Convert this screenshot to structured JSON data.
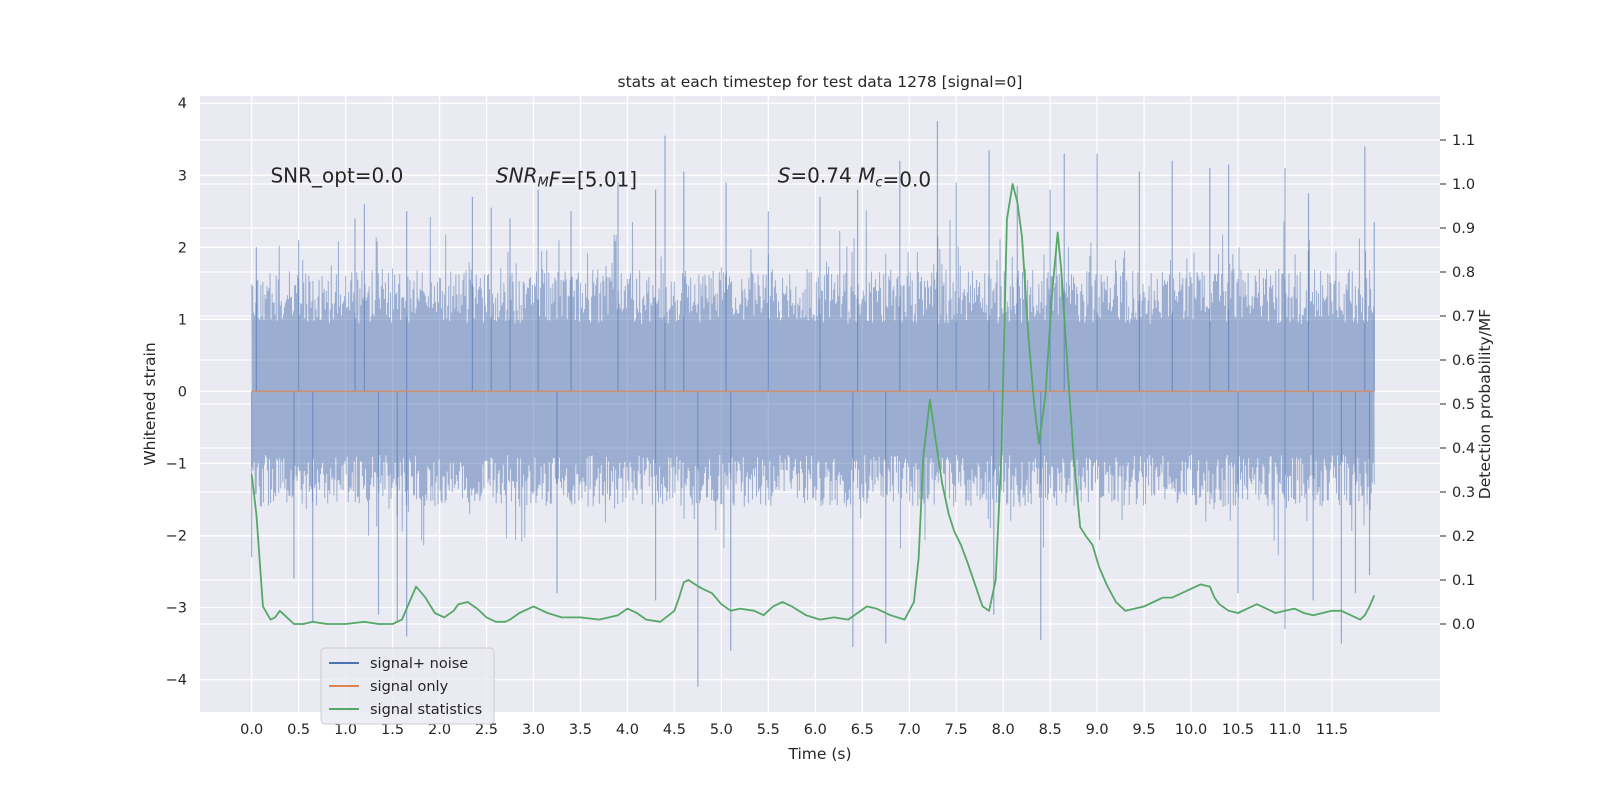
{
  "chart_data": {
    "type": "line",
    "title": "stats at each timestep for test data 1278 [signal=0]",
    "xlabel": "Time (s)",
    "ylabel_left": "Whitened strain",
    "ylabel_right": "Detection probability/MF",
    "xlim": [
      -0.55,
      12.65
    ],
    "ylim_left": [
      -4.45,
      4.1
    ],
    "ylim_right": [
      -0.2,
      1.2
    ],
    "x_ticks": [
      0.0,
      0.5,
      1.0,
      1.5,
      2.0,
      2.5,
      3.0,
      3.5,
      4.0,
      4.5,
      5.0,
      5.5,
      6.0,
      6.5,
      7.0,
      7.5,
      8.0,
      8.5,
      9.0,
      9.5,
      10.0,
      10.5,
      11.0,
      11.5
    ],
    "x_tick_labels": [
      "0.0",
      "0.5",
      "1.0",
      "1.5",
      "2.0",
      "2.5",
      "3.0",
      "3.5",
      "4.0",
      "4.5",
      "5.0",
      "5.5",
      "6.0",
      "6.5",
      "7.0",
      "7.5",
      "8.0",
      "8.5",
      "9.0",
      "9.5",
      "10.0",
      "10.5",
      "11.0",
      "11.5"
    ],
    "y_left_ticks": [
      -4,
      -3,
      -2,
      -1,
      0,
      1,
      2,
      3,
      4
    ],
    "y_left_tick_labels": [
      "−4",
      "−3",
      "−2",
      "−1",
      "0",
      "1",
      "2",
      "3",
      "4"
    ],
    "y_right_ticks": [
      0.0,
      0.1,
      0.2,
      0.3,
      0.4,
      0.5,
      0.6,
      0.7,
      0.8,
      0.9,
      1.0,
      1.1
    ],
    "y_right_tick_labels": [
      "0.0",
      "0.1",
      "0.2",
      "0.3",
      "0.4",
      "0.5",
      "0.6",
      "0.7",
      "0.8",
      "0.9",
      "1.0",
      "1.1"
    ],
    "grid": true,
    "legend_position": "lower-left",
    "annotations": [
      {
        "x": 0.2,
        "y": 3.0,
        "parts": [
          {
            "t": "SNR_opt=0.0"
          }
        ]
      },
      {
        "x": 2.6,
        "y": 3.0,
        "parts": [
          {
            "t": "SNR",
            "i": true
          },
          {
            "t": "M",
            "i": true,
            "sub": true
          },
          {
            "t": "F",
            "i": true
          },
          {
            "t": "=[5.01]"
          }
        ]
      },
      {
        "x": 5.6,
        "y": 3.0,
        "parts": [
          {
            "t": "S",
            "i": true
          },
          {
            "t": "=0.74   "
          },
          {
            "t": "M",
            "i": true
          },
          {
            "t": "c",
            "i": true,
            "sub": true
          },
          {
            "t": "=0.0"
          }
        ]
      }
    ],
    "series": [
      {
        "name": "signal+ noise",
        "color": "#4c72b0",
        "axis": "left",
        "style": "dense-noise",
        "x_range": [
          0.0,
          11.95
        ],
        "typical_band": [
          -1.6,
          1.7
        ],
        "peaks_high": [
          [
            0.05,
            2.0
          ],
          [
            0.5,
            2.1
          ],
          [
            1.1,
            2.4
          ],
          [
            1.2,
            2.6
          ],
          [
            1.65,
            2.5
          ],
          [
            2.35,
            2.7
          ],
          [
            2.55,
            2.55
          ],
          [
            2.75,
            2.4
          ],
          [
            3.05,
            2.8
          ],
          [
            3.4,
            2.5
          ],
          [
            3.9,
            2.9
          ],
          [
            4.3,
            2.8
          ],
          [
            4.4,
            3.55
          ],
          [
            4.6,
            3.05
          ],
          [
            5.05,
            2.9
          ],
          [
            5.5,
            2.5
          ],
          [
            6.05,
            2.7
          ],
          [
            6.45,
            2.8
          ],
          [
            6.9,
            3.2
          ],
          [
            7.3,
            3.75
          ],
          [
            7.5,
            2.9
          ],
          [
            7.85,
            3.35
          ],
          [
            8.15,
            2.85
          ],
          [
            8.5,
            2.8
          ],
          [
            8.65,
            3.3
          ],
          [
            9.0,
            3.3
          ],
          [
            9.45,
            3.05
          ],
          [
            9.8,
            3.2
          ],
          [
            10.2,
            3.1
          ],
          [
            10.4,
            3.15
          ],
          [
            11.0,
            3.1
          ],
          [
            11.25,
            2.75
          ],
          [
            11.85,
            3.4
          ],
          [
            11.95,
            2.35
          ]
        ],
        "peaks_low": [
          [
            0.0,
            -2.3
          ],
          [
            0.45,
            -2.6
          ],
          [
            0.65,
            -3.2
          ],
          [
            1.35,
            -3.1
          ],
          [
            1.55,
            -3.2
          ],
          [
            1.65,
            -3.4
          ],
          [
            3.25,
            -2.8
          ],
          [
            4.3,
            -2.9
          ],
          [
            4.75,
            -4.1
          ],
          [
            5.1,
            -3.6
          ],
          [
            6.4,
            -3.55
          ],
          [
            6.75,
            -3.5
          ],
          [
            7.9,
            -3.1
          ],
          [
            8.4,
            -3.45
          ],
          [
            10.5,
            -2.8
          ],
          [
            11.0,
            -3.3
          ],
          [
            11.3,
            -2.9
          ],
          [
            11.6,
            -3.5
          ],
          [
            11.75,
            -2.8
          ],
          [
            11.9,
            -2.55
          ]
        ]
      },
      {
        "name": "signal only",
        "color": "#dd8452",
        "axis": "left",
        "x": [
          0.0,
          11.95
        ],
        "y": [
          0.0,
          0.0
        ]
      },
      {
        "name": "signal statistics",
        "color": "#55a868",
        "axis": "right",
        "x": [
          0.0,
          0.05,
          0.12,
          0.2,
          0.25,
          0.3,
          0.35,
          0.45,
          0.55,
          0.65,
          0.8,
          1.0,
          1.2,
          1.35,
          1.5,
          1.6,
          1.68,
          1.75,
          1.85,
          1.95,
          2.05,
          2.15,
          2.2,
          2.3,
          2.4,
          2.5,
          2.6,
          2.7,
          2.75,
          2.85,
          3.0,
          3.15,
          3.3,
          3.5,
          3.7,
          3.9,
          4.0,
          4.1,
          4.2,
          4.35,
          4.5,
          4.55,
          4.6,
          4.65,
          4.72,
          4.8,
          4.9,
          5.0,
          5.1,
          5.2,
          5.35,
          5.45,
          5.55,
          5.65,
          5.75,
          5.9,
          6.05,
          6.2,
          6.35,
          6.45,
          6.55,
          6.65,
          6.8,
          6.95,
          7.05,
          7.1,
          7.15,
          7.22,
          7.28,
          7.35,
          7.42,
          7.48,
          7.55,
          7.62,
          7.7,
          7.78,
          7.85,
          7.92,
          7.98,
          8.04,
          8.1,
          8.15,
          8.2,
          8.27,
          8.33,
          8.38,
          8.45,
          8.52,
          8.58,
          8.62,
          8.68,
          8.75,
          8.82,
          8.88,
          8.95,
          9.02,
          9.1,
          9.2,
          9.3,
          9.4,
          9.5,
          9.6,
          9.7,
          9.8,
          9.9,
          10.0,
          10.1,
          10.2,
          10.25,
          10.3,
          10.4,
          10.5,
          10.6,
          10.7,
          10.8,
          10.9,
          11.0,
          11.1,
          11.2,
          11.3,
          11.4,
          11.5,
          11.6,
          11.7,
          11.8,
          11.85,
          11.9,
          11.95
        ],
        "y": [
          0.34,
          0.25,
          0.04,
          0.01,
          0.015,
          0.03,
          0.02,
          0.0,
          0.0,
          0.005,
          0.0,
          0.0,
          0.005,
          0.0,
          0.0,
          0.01,
          0.05,
          0.085,
          0.06,
          0.025,
          0.015,
          0.03,
          0.045,
          0.05,
          0.035,
          0.015,
          0.005,
          0.005,
          0.01,
          0.025,
          0.04,
          0.025,
          0.015,
          0.015,
          0.01,
          0.02,
          0.035,
          0.025,
          0.01,
          0.005,
          0.03,
          0.06,
          0.095,
          0.1,
          0.09,
          0.08,
          0.07,
          0.045,
          0.03,
          0.035,
          0.03,
          0.02,
          0.04,
          0.05,
          0.04,
          0.02,
          0.01,
          0.015,
          0.01,
          0.025,
          0.04,
          0.035,
          0.02,
          0.01,
          0.05,
          0.15,
          0.38,
          0.51,
          0.42,
          0.32,
          0.25,
          0.21,
          0.18,
          0.14,
          0.09,
          0.04,
          0.03,
          0.1,
          0.38,
          0.92,
          1.0,
          0.96,
          0.88,
          0.65,
          0.5,
          0.41,
          0.52,
          0.75,
          0.89,
          0.8,
          0.6,
          0.38,
          0.22,
          0.2,
          0.18,
          0.13,
          0.09,
          0.05,
          0.03,
          0.035,
          0.04,
          0.05,
          0.06,
          0.06,
          0.07,
          0.08,
          0.09,
          0.085,
          0.06,
          0.045,
          0.03,
          0.025,
          0.035,
          0.045,
          0.035,
          0.025,
          0.03,
          0.035,
          0.025,
          0.02,
          0.025,
          0.03,
          0.03,
          0.02,
          0.01,
          0.02,
          0.04,
          0.065
        ]
      }
    ]
  }
}
